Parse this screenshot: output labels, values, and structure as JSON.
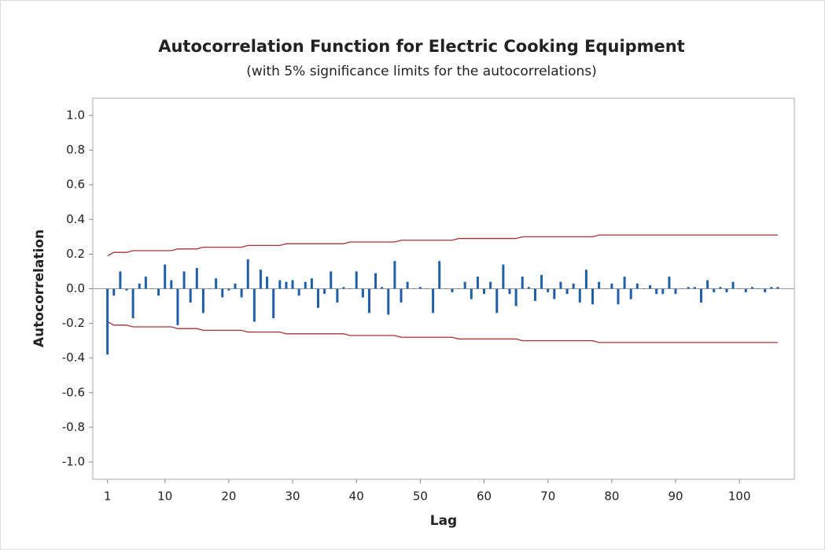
{
  "chart_data": {
    "type": "acf",
    "title": "Autocorrelation Function for Electric Cooking Equipment",
    "subtitle": "(with 5% significance limits for the autocorrelations)",
    "xlabel": "Lag",
    "ylabel": "Autocorrelation",
    "x": [
      1,
      2,
      3,
      4,
      5,
      6,
      7,
      8,
      9,
      10,
      11,
      12,
      13,
      14,
      15,
      16,
      17,
      18,
      19,
      20,
      21,
      22,
      23,
      24,
      25,
      26,
      27,
      28,
      29,
      30,
      31,
      32,
      33,
      34,
      35,
      36,
      37,
      38,
      39,
      40,
      41,
      42,
      43,
      44,
      45,
      46,
      47,
      48,
      49,
      50,
      51,
      52,
      53,
      54,
      55,
      56,
      57,
      58,
      59,
      60,
      61,
      62,
      63,
      64,
      65,
      66,
      67,
      68,
      69,
      70,
      71,
      72,
      73,
      74,
      75,
      76,
      77,
      78,
      79,
      80,
      81,
      82,
      83,
      84,
      85,
      86,
      87,
      88,
      89,
      90,
      91,
      92,
      93,
      94,
      95,
      96,
      97,
      98,
      99,
      100,
      101,
      102,
      103,
      104,
      105,
      106
    ],
    "values": [
      -0.38,
      -0.04,
      0.1,
      -0.01,
      -0.17,
      0.03,
      0.07,
      0.0,
      -0.04,
      0.14,
      0.05,
      -0.21,
      0.1,
      -0.08,
      0.12,
      -0.14,
      0.0,
      0.06,
      -0.05,
      -0.01,
      0.03,
      -0.05,
      0.17,
      -0.19,
      0.11,
      0.07,
      -0.17,
      0.05,
      0.04,
      0.05,
      -0.04,
      0.04,
      0.06,
      -0.11,
      -0.03,
      0.1,
      -0.08,
      0.01,
      0.0,
      0.1,
      -0.05,
      -0.14,
      0.09,
      0.01,
      -0.15,
      0.16,
      -0.08,
      0.04,
      0.0,
      0.01,
      0.0,
      -0.14,
      0.16,
      0.0,
      -0.02,
      0.0,
      0.04,
      -0.06,
      0.07,
      -0.03,
      0.04,
      -0.14,
      0.14,
      -0.03,
      -0.1,
      0.07,
      0.01,
      -0.07,
      0.08,
      -0.02,
      -0.06,
      0.04,
      -0.03,
      0.03,
      -0.08,
      0.11,
      -0.09,
      0.04,
      0.0,
      0.03,
      -0.09,
      0.07,
      -0.06,
      0.03,
      0.0,
      0.02,
      -0.03,
      -0.03,
      0.07,
      -0.03,
      0.0,
      0.01,
      0.01,
      -0.08,
      0.05,
      -0.02,
      0.01,
      -0.02,
      0.04,
      0.0,
      -0.02,
      0.01,
      0.0,
      -0.02,
      0.01,
      0.01
    ],
    "upper_limit": [
      0.19,
      0.21,
      0.21,
      0.21,
      0.22,
      0.22,
      0.22,
      0.22,
      0.22,
      0.22,
      0.22,
      0.23,
      0.23,
      0.23,
      0.23,
      0.24,
      0.24,
      0.24,
      0.24,
      0.24,
      0.24,
      0.24,
      0.25,
      0.25,
      0.25,
      0.25,
      0.25,
      0.25,
      0.26,
      0.26,
      0.26,
      0.26,
      0.26,
      0.26,
      0.26,
      0.26,
      0.26,
      0.26,
      0.27,
      0.27,
      0.27,
      0.27,
      0.27,
      0.27,
      0.27,
      0.27,
      0.28,
      0.28,
      0.28,
      0.28,
      0.28,
      0.28,
      0.28,
      0.28,
      0.28,
      0.29,
      0.29,
      0.29,
      0.29,
      0.29,
      0.29,
      0.29,
      0.29,
      0.29,
      0.29,
      0.3,
      0.3,
      0.3,
      0.3,
      0.3,
      0.3,
      0.3,
      0.3,
      0.3,
      0.3,
      0.3,
      0.3,
      0.31,
      0.31,
      0.31,
      0.31,
      0.31,
      0.31,
      0.31,
      0.31,
      0.31,
      0.31,
      0.31,
      0.31,
      0.31,
      0.31,
      0.31,
      0.31,
      0.31,
      0.31,
      0.31,
      0.31,
      0.31,
      0.31,
      0.31,
      0.31,
      0.31,
      0.31,
      0.31,
      0.31,
      0.31,
      0.31
    ],
    "lower_limit": [
      -0.19,
      -0.21,
      -0.21,
      -0.21,
      -0.22,
      -0.22,
      -0.22,
      -0.22,
      -0.22,
      -0.22,
      -0.22,
      -0.23,
      -0.23,
      -0.23,
      -0.23,
      -0.24,
      -0.24,
      -0.24,
      -0.24,
      -0.24,
      -0.24,
      -0.24,
      -0.25,
      -0.25,
      -0.25,
      -0.25,
      -0.25,
      -0.25,
      -0.26,
      -0.26,
      -0.26,
      -0.26,
      -0.26,
      -0.26,
      -0.26,
      -0.26,
      -0.26,
      -0.26,
      -0.27,
      -0.27,
      -0.27,
      -0.27,
      -0.27,
      -0.27,
      -0.27,
      -0.27,
      -0.28,
      -0.28,
      -0.28,
      -0.28,
      -0.28,
      -0.28,
      -0.28,
      -0.28,
      -0.28,
      -0.29,
      -0.29,
      -0.29,
      -0.29,
      -0.29,
      -0.29,
      -0.29,
      -0.29,
      -0.29,
      -0.29,
      -0.3,
      -0.3,
      -0.3,
      -0.3,
      -0.3,
      -0.3,
      -0.3,
      -0.3,
      -0.3,
      -0.3,
      -0.3,
      -0.3,
      -0.31,
      -0.31,
      -0.31,
      -0.31,
      -0.31,
      -0.31,
      -0.31,
      -0.31,
      -0.31,
      -0.31,
      -0.31,
      -0.31,
      -0.31,
      -0.31,
      -0.31,
      -0.31,
      -0.31,
      -0.31,
      -0.31,
      -0.31,
      -0.31,
      -0.31,
      -0.31,
      -0.31,
      -0.31,
      -0.31,
      -0.31,
      -0.31,
      -0.31,
      -0.31
    ],
    "color": "#1f5fa8",
    "limit_color": "#a83232",
    "xlim": [
      -1.3,
      108.6
    ],
    "ylim": [
      -1.1,
      1.1
    ],
    "xticks": [
      1,
      10,
      20,
      30,
      40,
      50,
      60,
      70,
      80,
      90,
      100
    ],
    "yticks": [
      {
        "value": -1.0,
        "label": "-1.0"
      },
      -0.8,
      -0.6,
      -0.4,
      -0.2,
      {
        "value": 0.0,
        "label": "0.0"
      },
      0.2,
      0.4,
      0.6,
      0.8,
      {
        "value": 1.0,
        "label": "1.0"
      }
    ]
  }
}
